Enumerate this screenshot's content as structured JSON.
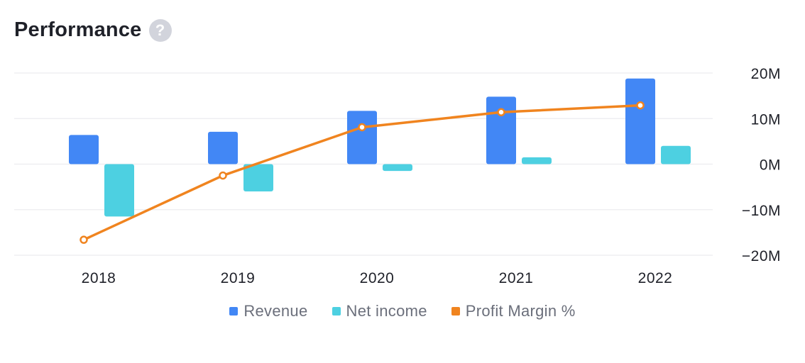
{
  "header": {
    "title": "Performance",
    "help_glyph": "?",
    "help_icon": "help-circle-icon"
  },
  "colors": {
    "revenue": "#4287f5",
    "net_income": "#4dd0e1",
    "profit_margin": "#f0841f",
    "grid": "#ececef"
  },
  "legend": [
    {
      "label": "Revenue",
      "color": "#4287f5"
    },
    {
      "label": "Net income",
      "color": "#4dd0e1"
    },
    {
      "label": "Profit Margin %",
      "color": "#f0841f"
    }
  ],
  "chart_data": {
    "type": "bar",
    "categories": [
      "2018",
      "2019",
      "2020",
      "2021",
      "2022"
    ],
    "y_ticks": [
      20000000,
      10000000,
      0,
      -10000000,
      -20000000
    ],
    "y_tick_labels": [
      "20M",
      "10M",
      "0M",
      "−10M",
      "−20M"
    ],
    "ylim": [
      -20000000,
      20000000
    ],
    "y_axis_position": "right",
    "grid": true,
    "legend_position": "bottom",
    "series": [
      {
        "name": "Revenue",
        "type": "bar",
        "values": [
          6400000,
          7100000,
          11700000,
          14800000,
          18800000
        ]
      },
      {
        "name": "Net income",
        "type": "bar",
        "values": [
          -11500000,
          -6000000,
          -1500000,
          1500000,
          4000000
        ]
      },
      {
        "name": "Profit Margin %",
        "type": "line",
        "values": [
          -16600000,
          -2500000,
          8100000,
          11400000,
          12900000
        ]
      }
    ]
  }
}
